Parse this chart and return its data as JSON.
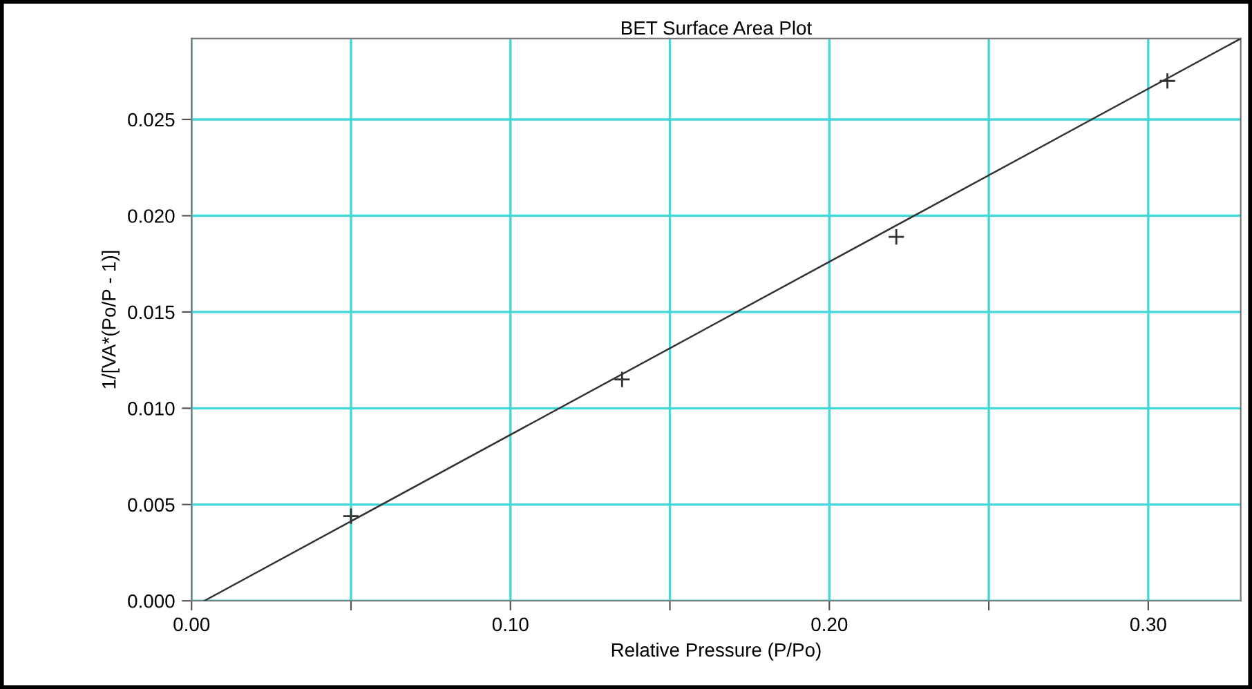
{
  "chart_data": {
    "type": "scatter",
    "title": "BET Surface Area Plot",
    "xlabel": "Relative Pressure (P/Po)",
    "ylabel": "1/[VA*(Po/P - 1)]",
    "xlim": [
      0,
      0.329
    ],
    "ylim": [
      0,
      0.0292
    ],
    "xticks": [
      {
        "value": 0,
        "label": "0.00"
      },
      {
        "value": 0.05,
        "label": null
      },
      {
        "value": 0.1,
        "label": "0.10"
      },
      {
        "value": 0.15,
        "label": null
      },
      {
        "value": 0.2,
        "label": "0.20"
      },
      {
        "value": 0.25,
        "label": null
      },
      {
        "value": 0.3,
        "label": "0.30"
      }
    ],
    "yticks": [
      {
        "value": 0,
        "label": "0.000"
      },
      {
        "value": 0.005,
        "label": "0.005"
      },
      {
        "value": 0.01,
        "label": "0.010"
      },
      {
        "value": 0.015,
        "label": "0.015"
      },
      {
        "value": 0.02,
        "label": "0.020"
      },
      {
        "value": 0.025,
        "label": "0.025"
      }
    ],
    "grid": true,
    "series": [
      {
        "marker": "cross",
        "color": "#333333",
        "x": [
          0.05,
          0.135,
          0.221,
          0.306
        ],
        "values": [
          0.0044,
          0.0115,
          0.0189,
          0.027
        ]
      },
      {
        "type": "line",
        "marker": "none",
        "color": "#333333",
        "x": [
          0.004,
          0.329
        ],
        "values": [
          0,
          0.0292
        ]
      }
    ]
  }
}
